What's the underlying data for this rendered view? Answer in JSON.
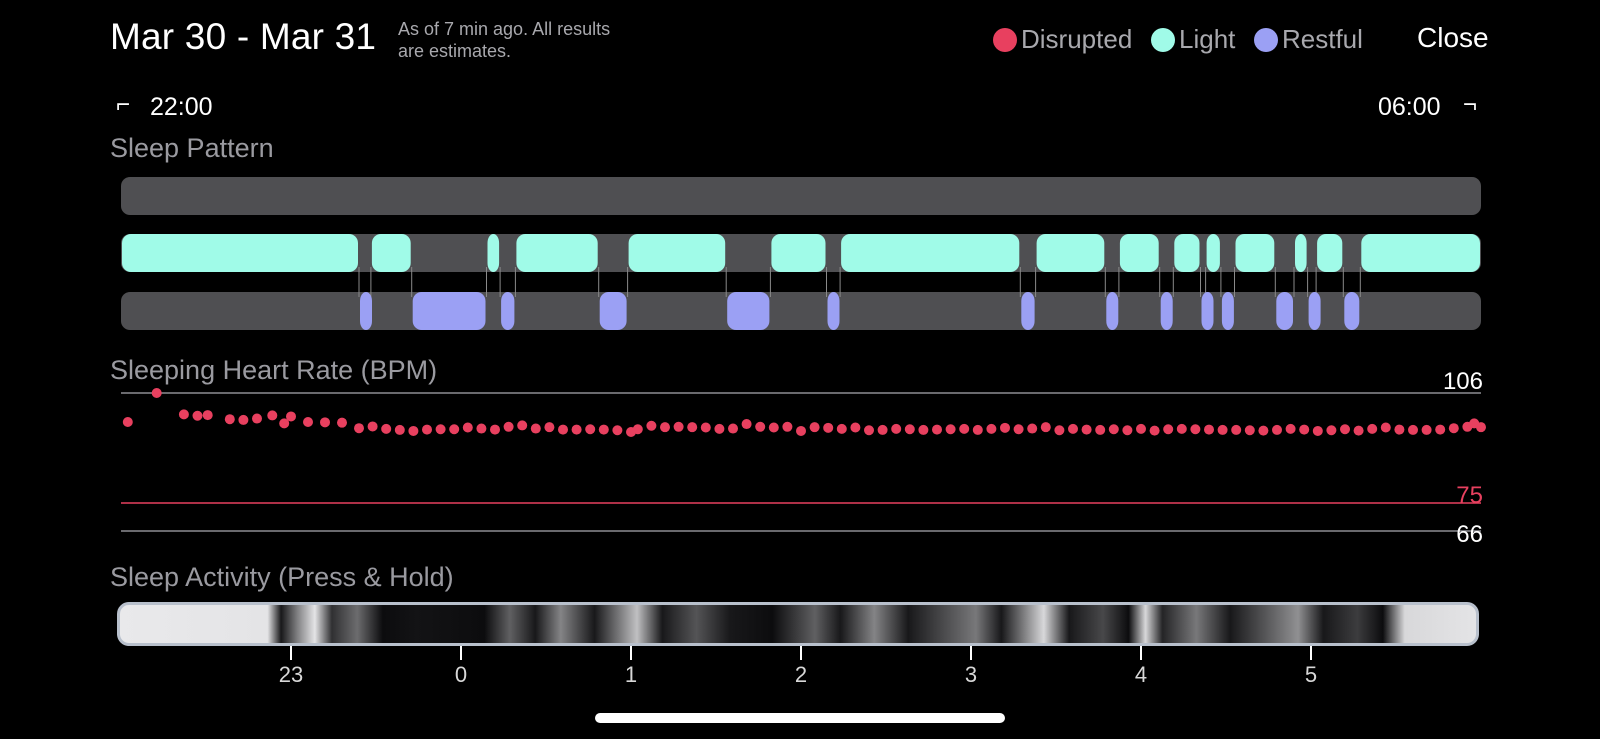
{
  "header": {
    "date_range": "Mar 30 - Mar 31",
    "as_of_line1": "As of 7 min ago. All results",
    "as_of_line2": "are estimates.",
    "close_label": "Close"
  },
  "legend": [
    {
      "label": "Disrupted",
      "color": "#e8405f"
    },
    {
      "label": "Light",
      "color": "#a0fbe8"
    },
    {
      "label": "Restful",
      "color": "#9ba0f4"
    }
  ],
  "time_range": {
    "start": "22:00",
    "end": "06:00"
  },
  "sections": {
    "sleep_pattern": "Sleep Pattern",
    "heart_rate": "Sleeping Heart Rate (BPM)",
    "activity": "Sleep Activity (Press & Hold)"
  },
  "chart_data": {
    "type": "scatter",
    "title": "Sleeping Heart Rate (BPM)",
    "x_unit": "hours since 22:00",
    "x_ticks": [
      {
        "label": "23",
        "x": 1.0
      },
      {
        "label": "0",
        "x": 2.0
      },
      {
        "label": "1",
        "x": 3.0
      },
      {
        "label": "2",
        "x": 4.0
      },
      {
        "label": "3",
        "x": 5.0
      },
      {
        "label": "4",
        "x": 6.0
      },
      {
        "label": "5",
        "x": 7.0
      }
    ],
    "xlim": [
      0,
      8
    ],
    "ylim": [
      66,
      106
    ],
    "reference_lines": [
      {
        "label": "106",
        "value": 106,
        "color": "#8e8e93"
      },
      {
        "label": "75",
        "value": 75,
        "color": "#e8405f"
      },
      {
        "label": "66",
        "value": 66,
        "color": "#8e8e93"
      }
    ],
    "series": [
      {
        "color": "#e8405f",
        "points": [
          [
            0.04,
            97.6
          ],
          [
            0.21,
            106
          ],
          [
            0.37,
            99.8
          ],
          [
            0.45,
            99.4
          ],
          [
            0.51,
            99.6
          ],
          [
            0.64,
            98.4
          ],
          [
            0.72,
            98.2
          ],
          [
            0.8,
            98.6
          ],
          [
            0.89,
            99.5
          ],
          [
            0.96,
            97.2
          ],
          [
            1.0,
            99.2
          ],
          [
            1.1,
            97.6
          ],
          [
            1.2,
            97.5
          ],
          [
            1.3,
            97.4
          ],
          [
            1.4,
            95.8
          ],
          [
            1.48,
            96.3
          ],
          [
            1.56,
            95.6
          ],
          [
            1.64,
            95.3
          ],
          [
            1.72,
            95.0
          ],
          [
            1.8,
            95.4
          ],
          [
            1.88,
            95.5
          ],
          [
            1.96,
            95.5
          ],
          [
            2.04,
            96.0
          ],
          [
            2.12,
            95.7
          ],
          [
            2.2,
            95.4
          ],
          [
            2.28,
            96.2
          ],
          [
            2.36,
            96.6
          ],
          [
            2.44,
            95.7
          ],
          [
            2.52,
            96.1
          ],
          [
            2.6,
            95.4
          ],
          [
            2.68,
            95.4
          ],
          [
            2.76,
            95.5
          ],
          [
            2.84,
            95.4
          ],
          [
            2.92,
            95.2
          ],
          [
            3.0,
            94.7
          ],
          [
            3.04,
            95.5
          ],
          [
            3.12,
            96.5
          ],
          [
            3.2,
            96.1
          ],
          [
            3.28,
            96.2
          ],
          [
            3.36,
            96.1
          ],
          [
            3.44,
            96.0
          ],
          [
            3.52,
            95.6
          ],
          [
            3.6,
            95.7
          ],
          [
            3.68,
            97.0
          ],
          [
            3.76,
            96.2
          ],
          [
            3.84,
            96.0
          ],
          [
            3.92,
            96.2
          ],
          [
            4.0,
            95.0
          ],
          [
            4.08,
            96.1
          ],
          [
            4.16,
            95.9
          ],
          [
            4.24,
            95.6
          ],
          [
            4.32,
            96.0
          ],
          [
            4.4,
            95.2
          ],
          [
            4.48,
            95.3
          ],
          [
            4.56,
            95.6
          ],
          [
            4.64,
            95.5
          ],
          [
            4.72,
            95.3
          ],
          [
            4.8,
            95.4
          ],
          [
            4.88,
            95.5
          ],
          [
            4.96,
            95.6
          ],
          [
            5.04,
            95.3
          ],
          [
            5.12,
            95.6
          ],
          [
            5.2,
            95.9
          ],
          [
            5.28,
            95.5
          ],
          [
            5.36,
            95.7
          ],
          [
            5.44,
            96.1
          ],
          [
            5.52,
            95.2
          ],
          [
            5.6,
            95.6
          ],
          [
            5.68,
            95.4
          ],
          [
            5.76,
            95.3
          ],
          [
            5.84,
            95.5
          ],
          [
            5.92,
            95.2
          ],
          [
            6.0,
            95.6
          ],
          [
            6.08,
            95.1
          ],
          [
            6.16,
            95.5
          ],
          [
            6.24,
            95.6
          ],
          [
            6.32,
            95.5
          ],
          [
            6.4,
            95.4
          ],
          [
            6.48,
            95.3
          ],
          [
            6.56,
            95.3
          ],
          [
            6.64,
            95.2
          ],
          [
            6.72,
            95.1
          ],
          [
            6.8,
            95.3
          ],
          [
            6.88,
            95.6
          ],
          [
            6.96,
            95.4
          ],
          [
            7.04,
            95.0
          ],
          [
            7.12,
            95.2
          ],
          [
            7.2,
            95.5
          ],
          [
            7.28,
            95.1
          ],
          [
            7.36,
            95.6
          ],
          [
            7.44,
            96.0
          ],
          [
            7.52,
            95.4
          ],
          [
            7.6,
            95.3
          ],
          [
            7.68,
            95.3
          ],
          [
            7.76,
            95.4
          ],
          [
            7.84,
            95.8
          ],
          [
            7.92,
            96.2
          ],
          [
            7.96,
            97.2
          ],
          [
            8.0,
            96.1
          ]
        ]
      }
    ]
  },
  "sleep_pattern": {
    "light_segments": [
      [
        0.0,
        1.4
      ],
      [
        1.47,
        1.71
      ],
      [
        2.15,
        2.23
      ],
      [
        2.32,
        2.81
      ],
      [
        2.98,
        3.56
      ],
      [
        3.82,
        4.15
      ],
      [
        4.23,
        5.29
      ],
      [
        5.38,
        5.79
      ],
      [
        5.87,
        6.11
      ],
      [
        6.19,
        6.35
      ],
      [
        6.38,
        6.47
      ],
      [
        6.55,
        6.79
      ],
      [
        6.9,
        6.98
      ],
      [
        7.03,
        7.19
      ],
      [
        7.29,
        8.0
      ]
    ],
    "restful_segments": [
      [
        1.4,
        1.47
      ],
      [
        1.71,
        2.15
      ],
      [
        2.23,
        2.32
      ],
      [
        2.81,
        2.98
      ],
      [
        3.56,
        3.82
      ],
      [
        4.15,
        4.23
      ],
      [
        5.29,
        5.38
      ],
      [
        5.79,
        5.87
      ],
      [
        6.11,
        6.19
      ],
      [
        6.35,
        6.38
      ],
      [
        6.47,
        6.55
      ],
      [
        6.79,
        6.9
      ],
      [
        6.98,
        7.03
      ],
      [
        7.19,
        7.29
      ]
    ]
  },
  "activity_stops": [
    {
      "x": 0.0,
      "v": 0.97
    },
    {
      "x": 0.87,
      "v": 0.95
    },
    {
      "x": 0.95,
      "v": 0.1
    },
    {
      "x": 1.05,
      "v": 0.55
    },
    {
      "x": 1.15,
      "v": 0.95
    },
    {
      "x": 1.25,
      "v": 0.2
    },
    {
      "x": 1.4,
      "v": 0.45
    },
    {
      "x": 1.55,
      "v": 0.05
    },
    {
      "x": 1.75,
      "v": 0.08
    },
    {
      "x": 2.15,
      "v": 0.05
    },
    {
      "x": 2.3,
      "v": 0.4
    },
    {
      "x": 2.45,
      "v": 0.1
    },
    {
      "x": 2.6,
      "v": 0.55
    },
    {
      "x": 2.8,
      "v": 0.1
    },
    {
      "x": 3.05,
      "v": 0.8
    },
    {
      "x": 3.2,
      "v": 0.1
    },
    {
      "x": 3.4,
      "v": 0.35
    },
    {
      "x": 3.6,
      "v": 0.1
    },
    {
      "x": 3.85,
      "v": 0.05
    },
    {
      "x": 4.1,
      "v": 0.4
    },
    {
      "x": 4.25,
      "v": 0.1
    },
    {
      "x": 4.45,
      "v": 0.55
    },
    {
      "x": 4.65,
      "v": 0.1
    },
    {
      "x": 4.85,
      "v": 0.3
    },
    {
      "x": 5.05,
      "v": 0.5
    },
    {
      "x": 5.2,
      "v": 0.1
    },
    {
      "x": 5.45,
      "v": 0.9
    },
    {
      "x": 5.6,
      "v": 0.1
    },
    {
      "x": 5.8,
      "v": 0.3
    },
    {
      "x": 5.95,
      "v": 0.05
    },
    {
      "x": 6.05,
      "v": 0.9
    },
    {
      "x": 6.15,
      "v": 0.15
    },
    {
      "x": 6.35,
      "v": 0.5
    },
    {
      "x": 6.55,
      "v": 0.1
    },
    {
      "x": 6.75,
      "v": 0.35
    },
    {
      "x": 6.95,
      "v": 0.6
    },
    {
      "x": 7.1,
      "v": 0.1
    },
    {
      "x": 7.3,
      "v": 0.25
    },
    {
      "x": 7.45,
      "v": 0.05
    },
    {
      "x": 7.58,
      "v": 0.9
    },
    {
      "x": 8.0,
      "v": 0.95
    }
  ]
}
